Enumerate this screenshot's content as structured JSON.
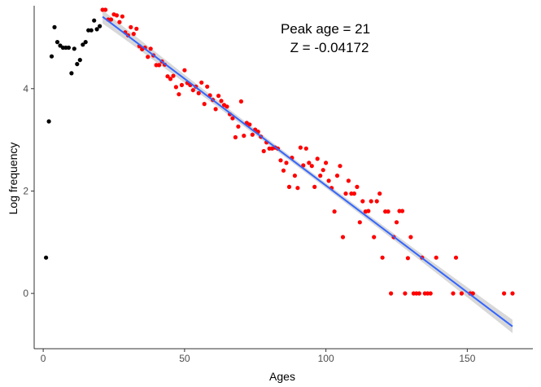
{
  "chart_data": {
    "type": "scatter",
    "title": "",
    "annotation": [
      "Peak age = 21",
      "Z = -0.04172"
    ],
    "xlabel": "Ages",
    "ylabel": "Log frequency",
    "xlim": [
      -3.2,
      173.2
    ],
    "ylim": [
      -1.08,
      5.62
    ],
    "x_ticks": [
      0,
      50,
      100,
      150
    ],
    "y_ticks": [
      0,
      2,
      4
    ],
    "grid": false,
    "legend": "none",
    "colors": {
      "pre_peak": "#000000",
      "post_peak": "#ff0000",
      "fit_line": "#3366ff",
      "ribbon": "#bebebe",
      "axis": "#333333",
      "tick_label": "#4d4d4d"
    },
    "series": [
      {
        "group": "pre-peak",
        "points": [
          [
            1,
            0.7
          ],
          [
            2,
            3.36
          ],
          [
            3,
            4.63
          ],
          [
            4,
            5.2
          ],
          [
            5,
            4.91
          ],
          [
            6,
            4.84
          ],
          [
            7,
            4.8
          ],
          [
            8,
            4.8
          ],
          [
            9,
            4.8
          ],
          [
            10,
            4.3
          ],
          [
            11,
            4.78
          ],
          [
            12,
            4.48
          ],
          [
            13,
            4.56
          ],
          [
            14,
            4.86
          ],
          [
            15,
            4.91
          ],
          [
            16,
            5.14
          ],
          [
            17,
            5.14
          ],
          [
            18,
            5.33
          ],
          [
            19,
            5.16
          ],
          [
            20,
            5.22
          ]
        ]
      },
      {
        "group": "post-peak",
        "points": [
          [
            21,
            5.54
          ],
          [
            22,
            5.54
          ],
          [
            23,
            5.35
          ],
          [
            24,
            5.35
          ],
          [
            25,
            5.45
          ],
          [
            26,
            5.43
          ],
          [
            27,
            5.3
          ],
          [
            28,
            5.41
          ],
          [
            29,
            5.1
          ],
          [
            30,
            5.04
          ],
          [
            31,
            5.2
          ],
          [
            32,
            5.07
          ],
          [
            33,
            5.17
          ],
          [
            34,
            4.83
          ],
          [
            35,
            4.77
          ],
          [
            36,
            4.8
          ],
          [
            37,
            4.62
          ],
          [
            38,
            4.78
          ],
          [
            39,
            4.65
          ],
          [
            40,
            4.46
          ],
          [
            41,
            4.46
          ],
          [
            42,
            4.53
          ],
          [
            43,
            4.47
          ],
          [
            44,
            4.24
          ],
          [
            45,
            4.19
          ],
          [
            46,
            4.25
          ],
          [
            47,
            4.03
          ],
          [
            48,
            3.89
          ],
          [
            49,
            4.07
          ],
          [
            50,
            4.36
          ],
          [
            51,
            4.11
          ],
          [
            52,
            4.07
          ],
          [
            53,
            3.97
          ],
          [
            54,
            4.04
          ],
          [
            55,
            3.91
          ],
          [
            56,
            4.12
          ],
          [
            57,
            3.7
          ],
          [
            58,
            4.04
          ],
          [
            59,
            3.87
          ],
          [
            60,
            3.78
          ],
          [
            61,
            3.6
          ],
          [
            62,
            3.86
          ],
          [
            63,
            3.76
          ],
          [
            64,
            3.68
          ],
          [
            65,
            3.65
          ],
          [
            66,
            3.5
          ],
          [
            67,
            3.42
          ],
          [
            68,
            3.05
          ],
          [
            69,
            3.26
          ],
          [
            70,
            3.75
          ],
          [
            71,
            3.08
          ],
          [
            72,
            3.33
          ],
          [
            73,
            3.3
          ],
          [
            74,
            3.1
          ],
          [
            75,
            3.2
          ],
          [
            76,
            3.16
          ],
          [
            77,
            3.06
          ],
          [
            78,
            2.78
          ],
          [
            79,
            2.95
          ],
          [
            80,
            2.83
          ],
          [
            81,
            2.83
          ],
          [
            82,
            2.85
          ],
          [
            83,
            2.83
          ],
          [
            84,
            2.6
          ],
          [
            85,
            2.4
          ],
          [
            86,
            2.55
          ],
          [
            87,
            2.08
          ],
          [
            88,
            2.65
          ],
          [
            89,
            2.3
          ],
          [
            90,
            2.06
          ],
          [
            91,
            2.85
          ],
          [
            92,
            2.5
          ],
          [
            93,
            2.83
          ],
          [
            94,
            2.55
          ],
          [
            95,
            2.49
          ],
          [
            96,
            2.08
          ],
          [
            97,
            2.63
          ],
          [
            98,
            2.3
          ],
          [
            99,
            2.41
          ],
          [
            100,
            2.55
          ],
          [
            101,
            2.2
          ],
          [
            102,
            2.06
          ],
          [
            103,
            1.6
          ],
          [
            104,
            2.3
          ],
          [
            105,
            2.49
          ],
          [
            106,
            1.1
          ],
          [
            107,
            1.95
          ],
          [
            108,
            2.2
          ],
          [
            109,
            1.95
          ],
          [
            110,
            1.95
          ],
          [
            111,
            2.08
          ],
          [
            112,
            1.39
          ],
          [
            113,
            1.8
          ],
          [
            114,
            1.6
          ],
          [
            115,
            1.61
          ],
          [
            116,
            1.8
          ],
          [
            117,
            1.1
          ],
          [
            118,
            1.8
          ],
          [
            119,
            1.95
          ],
          [
            120,
            0.7
          ],
          [
            121,
            1.6
          ],
          [
            122,
            1.6
          ],
          [
            123,
            0
          ],
          [
            124,
            1.1
          ],
          [
            125,
            1.39
          ],
          [
            126,
            1.61
          ],
          [
            127,
            1.61
          ],
          [
            128,
            0
          ],
          [
            129,
            0.69
          ],
          [
            130,
            1.1
          ],
          [
            131,
            0
          ],
          [
            132,
            0
          ],
          [
            133,
            0
          ],
          [
            134,
            0.7
          ],
          [
            135,
            0
          ],
          [
            136,
            0
          ],
          [
            137,
            0
          ],
          [
            139,
            0.7
          ],
          [
            145,
            0
          ],
          [
            146,
            0.7
          ],
          [
            148,
            0
          ],
          [
            151,
            0
          ],
          [
            152,
            0
          ],
          [
            163,
            0
          ],
          [
            166,
            0
          ]
        ]
      }
    ],
    "fit": {
      "x_range": [
        21,
        166
      ],
      "slope": -0.04172,
      "intercept": 6.28,
      "ci_halfwidth_ends": 0.13,
      "ci_halfwidth_mid": 0.05
    }
  }
}
